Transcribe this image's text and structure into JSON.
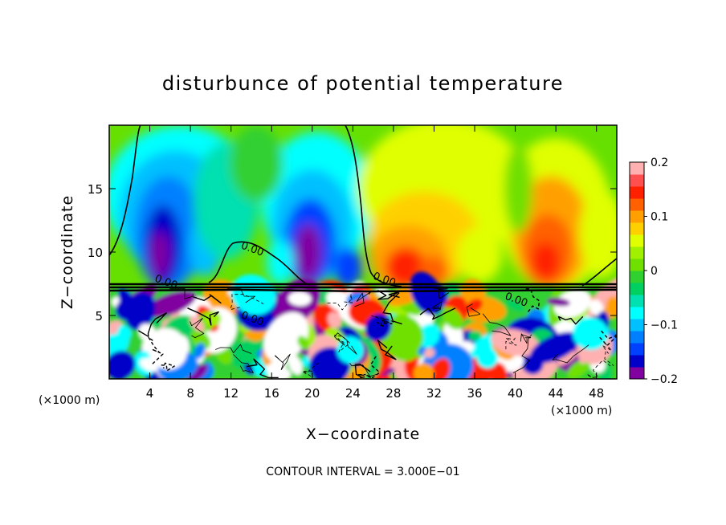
{
  "chart_data": {
    "type": "heatmap",
    "title": "disturbunce of potential temperature",
    "xlabel": "X−coordinate",
    "ylabel": "Z−coordinate",
    "x_unit_left": "(×1000 m)",
    "x_unit_right": "(×1000 m)",
    "footer": "CONTOUR INTERVAL = 3.000E−01",
    "xlim": [
      0,
      50
    ],
    "ylim": [
      0,
      20
    ],
    "xticks": [
      4,
      8,
      12,
      16,
      20,
      24,
      28,
      32,
      36,
      40,
      44,
      48
    ],
    "xtick_labels": [
      "4",
      "8",
      "12",
      "16",
      "20",
      "24",
      "28",
      "32",
      "36",
      "40",
      "44",
      "48"
    ],
    "yticks": [
      5,
      10,
      15
    ],
    "ytick_labels": [
      "5",
      "10",
      "15"
    ],
    "colorbar": {
      "range": [
        -0.2,
        0.2
      ],
      "ticks": [
        0.2,
        0.1,
        0,
        -0.1,
        -0.2
      ],
      "tick_labels": [
        "0.2",
        "0.1",
        "0",
        "−0.1",
        "−0.2"
      ],
      "colors": [
        "#8000a0",
        "#0000c8",
        "#0040ff",
        "#0080ff",
        "#00c0ff",
        "#00ffff",
        "#00e0b0",
        "#00d060",
        "#30d030",
        "#70e000",
        "#a0f000",
        "#e0ff00",
        "#ffd000",
        "#ffa000",
        "#ff6000",
        "#ff2000",
        "#ff5050",
        "#ffb0b0"
      ]
    },
    "contour_labels": [
      {
        "text": "0.00",
        "x": 14.0,
        "z": 10.0
      },
      {
        "text": "0.00",
        "x": 5.5,
        "z": 7.4
      },
      {
        "text": "0.00",
        "x": 27.0,
        "z": 7.6
      },
      {
        "text": "0.00",
        "x": 14.0,
        "z": 4.5
      },
      {
        "text": "0.00",
        "x": 40.0,
        "z": 6.0
      }
    ],
    "features": {
      "inversion_height": 7.3,
      "cold_anomalies": [
        {
          "x": 5,
          "z": 10.5,
          "value": -0.2
        },
        {
          "x": 20,
          "z": 10.5,
          "value": -0.2
        },
        {
          "x": 24,
          "z": 8.3,
          "value": -0.15
        }
      ],
      "warm_anomalies": [
        {
          "x": 29,
          "z": 9,
          "value": 0.15
        },
        {
          "x": 43,
          "z": 10,
          "value": 0.15
        },
        {
          "x": 31,
          "z": 13,
          "value": 0.1
        }
      ]
    }
  }
}
